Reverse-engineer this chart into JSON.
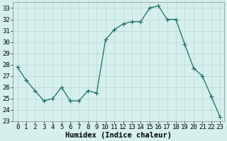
{
  "x": [
    0,
    1,
    2,
    3,
    4,
    5,
    6,
    7,
    8,
    9,
    10,
    11,
    12,
    13,
    14,
    15,
    16,
    17,
    18,
    19,
    20,
    21,
    22,
    23
  ],
  "y": [
    27.8,
    26.6,
    25.7,
    24.8,
    25.0,
    26.0,
    24.8,
    24.8,
    25.7,
    25.5,
    30.2,
    31.1,
    31.6,
    31.8,
    31.8,
    33.0,
    33.2,
    32.0,
    32.0,
    29.8,
    27.7,
    27.0,
    25.2,
    23.4
  ],
  "xlim": [
    -0.5,
    23.5
  ],
  "ylim": [
    23,
    33.5
  ],
  "yticks": [
    23,
    24,
    25,
    26,
    27,
    28,
    29,
    30,
    31,
    32,
    33
  ],
  "xticks": [
    0,
    1,
    2,
    3,
    4,
    5,
    6,
    7,
    8,
    9,
    10,
    11,
    12,
    13,
    14,
    15,
    16,
    17,
    18,
    19,
    20,
    21,
    22,
    23
  ],
  "xlabel": "Humidex (Indice chaleur)",
  "line_color": "#1a6b60",
  "marker": "+",
  "marker_size": 4,
  "bg_color": "#d5efed",
  "grid_major_color": "#b8d8d5",
  "grid_minor_color": "#cce6e4",
  "tick_label_fontsize": 6.5,
  "xlabel_fontsize": 7.5,
  "linewidth": 0.9
}
